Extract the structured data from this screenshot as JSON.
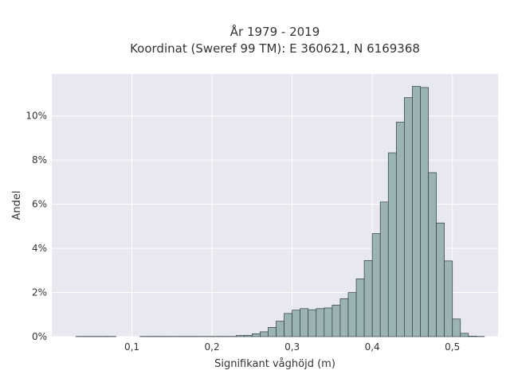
{
  "chart_data": {
    "type": "bar",
    "title_line1": "År 1979 - 2019",
    "title_line2": "Koordinat (Sweref 99 TM): E 360621, N 6169368",
    "xlabel": "Signifikant våghöjd (m)",
    "ylabel": "Andel",
    "xlim": [
      0.0,
      0.557
    ],
    "ylim": [
      0,
      11.9
    ],
    "x_ticks": [
      {
        "value": 0.1,
        "label": "0,1"
      },
      {
        "value": 0.2,
        "label": "0,2"
      },
      {
        "value": 0.3,
        "label": "0,3"
      },
      {
        "value": 0.4,
        "label": "0,4"
      },
      {
        "value": 0.5,
        "label": "0,5"
      }
    ],
    "y_ticks": [
      {
        "value": 0,
        "label": "0%"
      },
      {
        "value": 2,
        "label": "2%"
      },
      {
        "value": 4,
        "label": "4%"
      },
      {
        "value": 6,
        "label": "6%"
      },
      {
        "value": 8,
        "label": "8%"
      },
      {
        "value": 10,
        "label": "10%"
      }
    ],
    "grid": true,
    "bin_width": 0.01,
    "bins_x": [
      0.03,
      0.04,
      0.05,
      0.06,
      0.07,
      0.08,
      0.09,
      0.1,
      0.11,
      0.12,
      0.13,
      0.14,
      0.15,
      0.16,
      0.17,
      0.18,
      0.19,
      0.2,
      0.21,
      0.22,
      0.23,
      0.24,
      0.25,
      0.26,
      0.27,
      0.28,
      0.29,
      0.3,
      0.31,
      0.32,
      0.33,
      0.34,
      0.35,
      0.36,
      0.37,
      0.38,
      0.39,
      0.4,
      0.41,
      0.42,
      0.43,
      0.44,
      0.45,
      0.46,
      0.47,
      0.48,
      0.49,
      0.5,
      0.51,
      0.52,
      0.53
    ],
    "values": [
      0.01,
      0.01,
      0.01,
      0.01,
      0.01,
      0.0,
      0.0,
      0.0,
      0.01,
      0.01,
      0.01,
      0.01,
      0.01,
      0.01,
      0.01,
      0.01,
      0.01,
      0.01,
      0.01,
      0.01,
      0.05,
      0.06,
      0.13,
      0.22,
      0.42,
      0.7,
      1.05,
      1.2,
      1.27,
      1.22,
      1.27,
      1.3,
      1.43,
      1.72,
      2.0,
      2.62,
      3.45,
      4.67,
      6.1,
      8.33,
      9.72,
      10.83,
      11.34,
      11.29,
      7.43,
      5.15,
      3.43,
      0.8,
      0.15,
      0.02,
      0.01
    ],
    "bar_color": "#9bb3b3",
    "bar_edge_color": "#2f3e3e",
    "plot_bg": "#e8e8f0",
    "grid_color": "#ffffff"
  }
}
